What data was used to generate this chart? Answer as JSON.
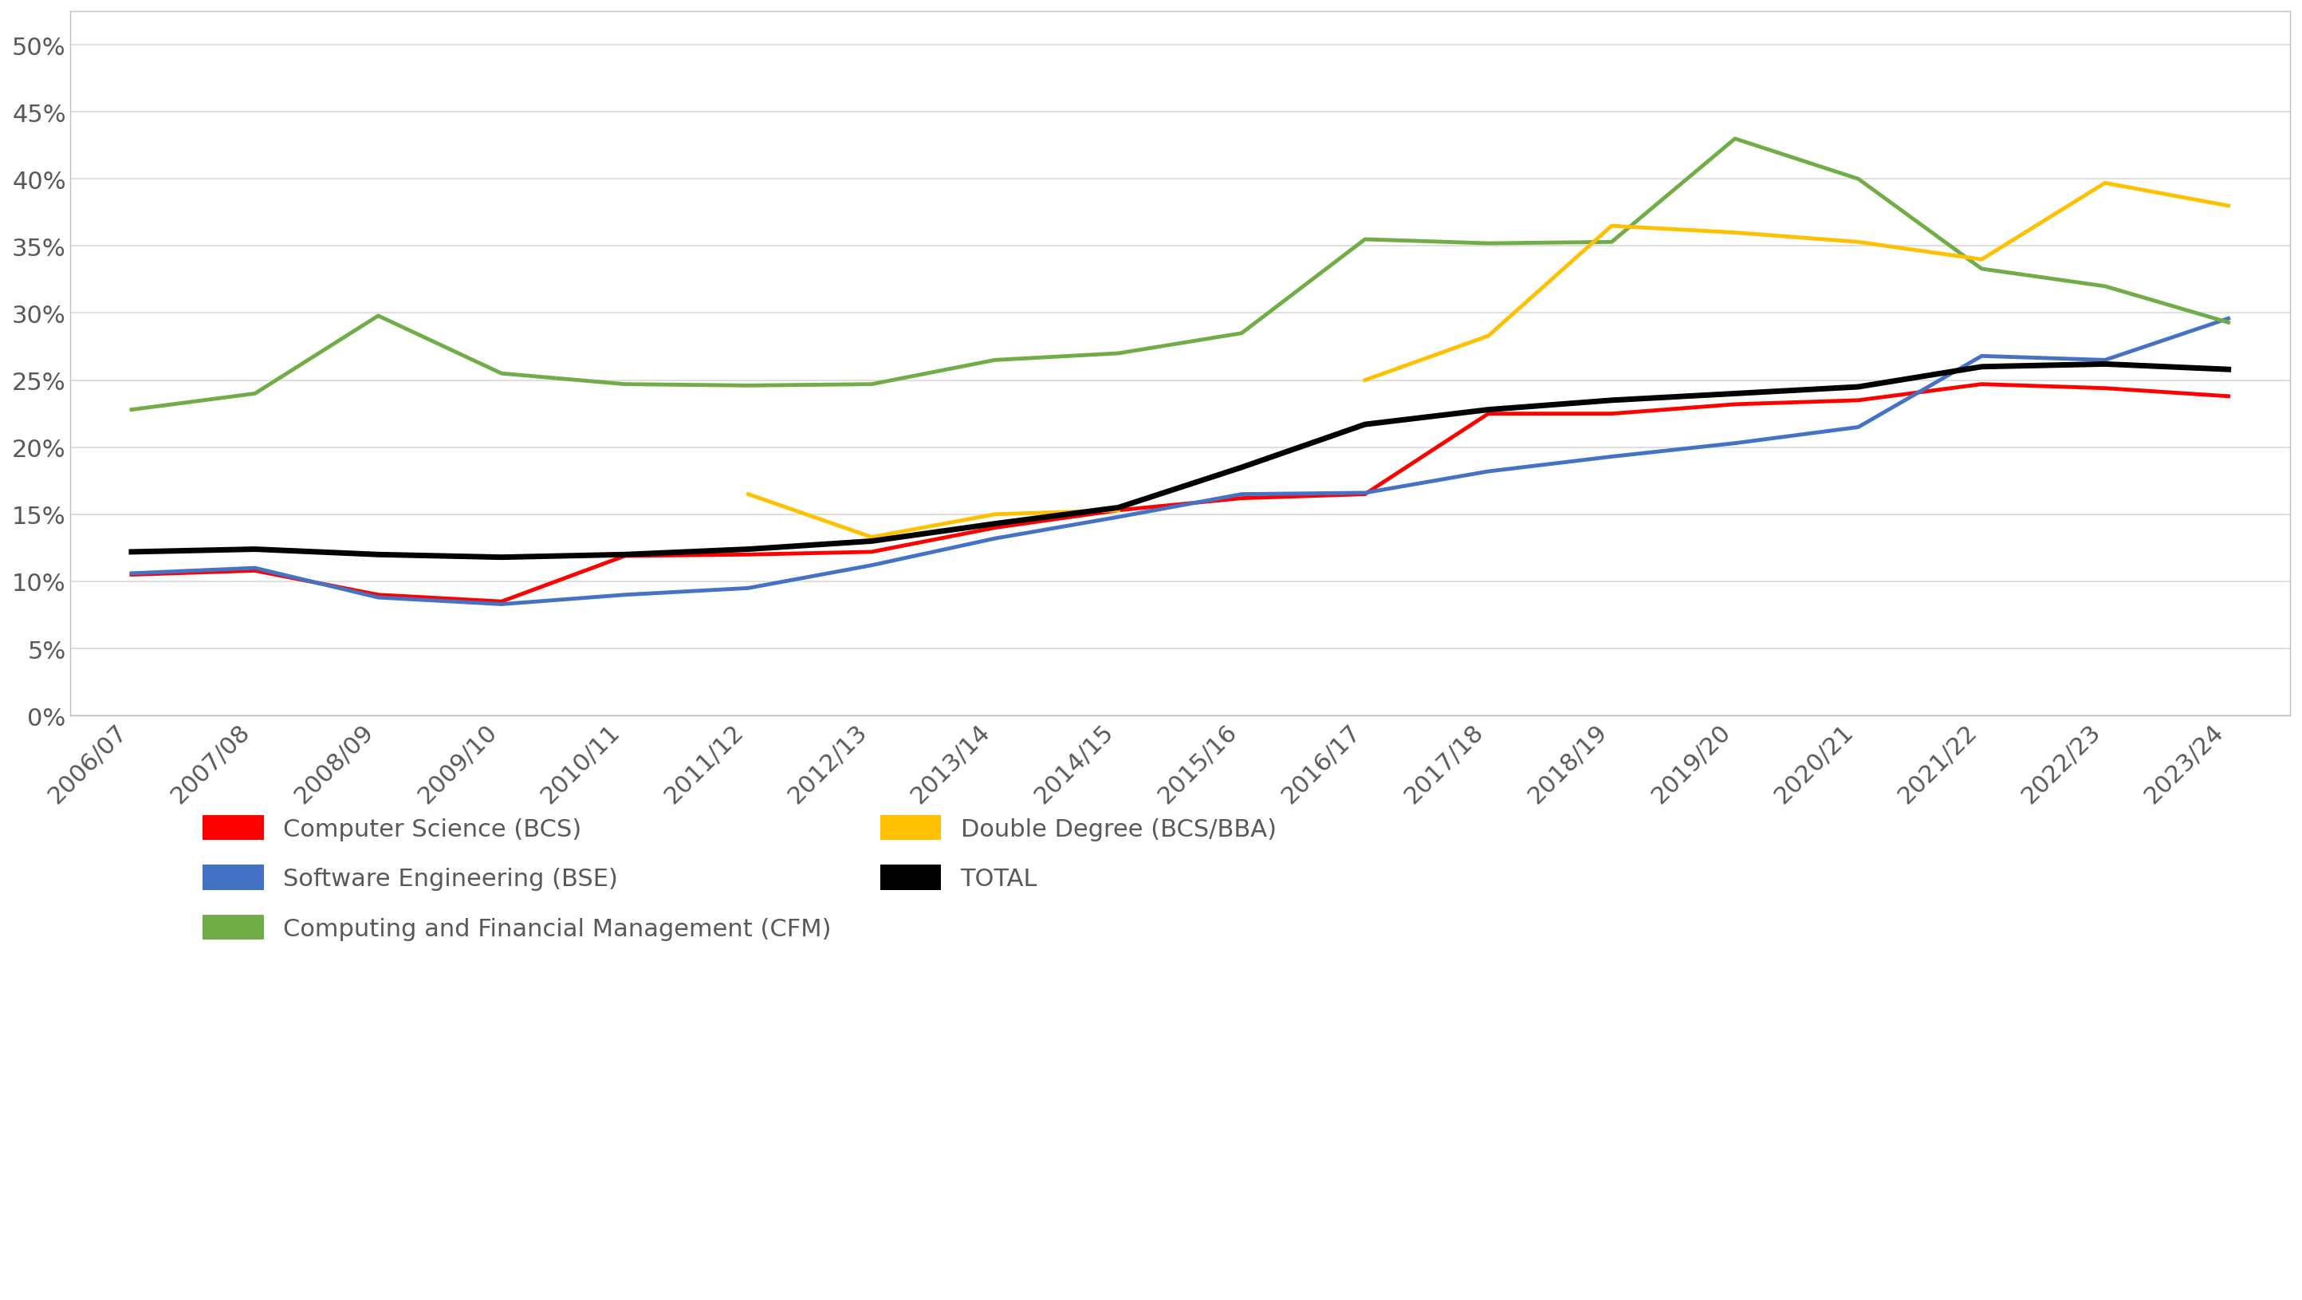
{
  "years": [
    "2006/07",
    "2007/08",
    "2008/09",
    "2009/10",
    "2010/11",
    "2011/12",
    "2012/13",
    "2013/14",
    "2014/15",
    "2015/16",
    "2016/17",
    "2017/18",
    "2018/19",
    "2019/20",
    "2020/21",
    "2021/22",
    "2022/23",
    "2023/24"
  ],
  "bcs": [
    0.105,
    0.108,
    0.09,
    0.085,
    0.119,
    0.12,
    0.122,
    0.14,
    0.153,
    0.162,
    0.165,
    0.225,
    0.225,
    0.232,
    0.235,
    0.247,
    0.244,
    0.238
  ],
  "bse": [
    0.106,
    0.11,
    0.088,
    0.083,
    0.09,
    0.095,
    0.112,
    0.132,
    0.148,
    0.165,
    0.166,
    0.182,
    0.193,
    0.203,
    0.215,
    0.268,
    0.265,
    0.296
  ],
  "cfm": [
    0.228,
    0.24,
    0.298,
    0.255,
    0.247,
    0.246,
    0.247,
    0.265,
    0.27,
    0.285,
    0.355,
    0.352,
    0.353,
    0.43,
    0.4,
    0.333,
    0.32,
    0.293
  ],
  "dd": [
    null,
    null,
    null,
    null,
    null,
    0.165,
    0.133,
    0.15,
    0.153,
    null,
    0.25,
    0.283,
    0.365,
    0.36,
    0.353,
    0.34,
    0.397,
    0.38
  ],
  "total": [
    0.122,
    0.124,
    0.12,
    0.118,
    0.12,
    0.124,
    0.13,
    0.143,
    0.155,
    0.185,
    0.217,
    0.228,
    0.235,
    0.24,
    0.245,
    0.26,
    0.262,
    0.258
  ],
  "bcs_color": "#FF0000",
  "bse_color": "#4472C4",
  "cfm_color": "#70AD47",
  "dd_color": "#FFC000",
  "total_color": "#000000",
  "background_color": "#FFFFFF",
  "plot_bg_color": "#FFFFFF",
  "grid_color": "#D9D9D9",
  "ylim": [
    0.0,
    0.525
  ],
  "yticks": [
    0.0,
    0.05,
    0.1,
    0.15,
    0.2,
    0.25,
    0.3,
    0.35,
    0.4,
    0.45,
    0.5
  ],
  "legend_labels": [
    "Computer Science (BCS)",
    "Software Engineering (BSE)",
    "Computing and Financial Management (CFM)",
    "Double Degree (BCS/BBA)",
    "TOTAL"
  ],
  "line_width": 3.5,
  "tick_label_fontsize": 22,
  "tick_label_color": "#595959",
  "xticklabel_rotation": 45
}
